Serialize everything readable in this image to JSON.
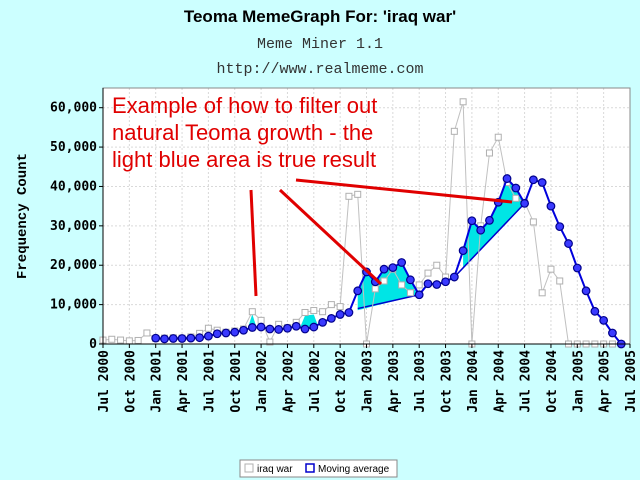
{
  "chart_data": {
    "type": "line",
    "title": "Teoma MemeGraph For: 'iraq war'",
    "subtitle": "Meme Miner 1.1",
    "url": "http://www.realmeme.com",
    "ylabel": "Frequency Count",
    "xlabel": "",
    "ylim": [
      0,
      65000
    ],
    "yticks": [
      0,
      10000,
      20000,
      30000,
      40000,
      50000,
      60000
    ],
    "ytick_labels": [
      "0",
      "10,000",
      "20,000",
      "30,000",
      "40,000",
      "50,000",
      "60,000"
    ],
    "xticks": [
      {
        "t": 0,
        "label": "Jul 2000"
      },
      {
        "t": 3,
        "label": "Oct 2000"
      },
      {
        "t": 6,
        "label": "Jan 2001"
      },
      {
        "t": 9,
        "label": "Apr 2001"
      },
      {
        "t": 12,
        "label": "Jul 2001"
      },
      {
        "t": 15,
        "label": "Oct 2001"
      },
      {
        "t": 18,
        "label": "Jan 2002"
      },
      {
        "t": 21,
        "label": "Apr 2002"
      },
      {
        "t": 24,
        "label": "Jul 2002"
      },
      {
        "t": 27,
        "label": "Oct 2002"
      },
      {
        "t": 30,
        "label": "Jan 2003"
      },
      {
        "t": 33,
        "label": "Apr 2003"
      },
      {
        "t": 36,
        "label": "Jul 2003"
      },
      {
        "t": 39,
        "label": "Oct 2003"
      },
      {
        "t": 42,
        "label": "Jan 2004"
      },
      {
        "t": 45,
        "label": "Apr 2004"
      },
      {
        "t": 48,
        "label": "Jul 2004"
      },
      {
        "t": 51,
        "label": "Oct 2004"
      },
      {
        "t": 54,
        "label": "Jan 2005"
      },
      {
        "t": 57,
        "label": "Apr 2005"
      },
      {
        "t": 60,
        "label": "Jul 2005"
      }
    ],
    "series": [
      {
        "name": "iraq war",
        "color": "#c0c0c0",
        "points": [
          [
            0,
            1000
          ],
          [
            1,
            1200
          ],
          [
            2,
            1000
          ],
          [
            3,
            800
          ],
          [
            4,
            900
          ],
          [
            5,
            2800
          ],
          [
            6,
            1400
          ],
          [
            7,
            1500
          ],
          [
            8,
            1600
          ],
          [
            9,
            1500
          ],
          [
            10,
            1800
          ],
          [
            11,
            2700
          ],
          [
            12,
            4000
          ],
          [
            13,
            3500
          ],
          [
            14,
            3000
          ],
          [
            15,
            3300
          ],
          [
            16,
            3800
          ],
          [
            17,
            8200
          ],
          [
            18,
            6000
          ],
          [
            19,
            500
          ],
          [
            20,
            5000
          ],
          [
            21,
            4200
          ],
          [
            22,
            5500
          ],
          [
            23,
            8000
          ],
          [
            24,
            8500
          ],
          [
            25,
            8200
          ],
          [
            26,
            10000
          ],
          [
            27,
            9500
          ],
          [
            28,
            37500
          ],
          [
            29,
            38000
          ],
          [
            30,
            0
          ],
          [
            31,
            14000
          ],
          [
            32,
            16000
          ],
          [
            33,
            19000
          ],
          [
            34,
            15000
          ],
          [
            35,
            13000
          ],
          [
            36,
            15000
          ],
          [
            37,
            18000
          ],
          [
            38,
            20000
          ],
          [
            39,
            17000
          ],
          [
            40,
            54000
          ],
          [
            41,
            61500
          ],
          [
            42,
            0
          ],
          [
            43,
            30000
          ],
          [
            44,
            48500
          ],
          [
            45,
            52500
          ],
          [
            46,
            41000
          ],
          [
            47,
            37000
          ],
          [
            48,
            36000
          ],
          [
            49,
            31000
          ],
          [
            50,
            13000
          ],
          [
            51,
            19000
          ],
          [
            52,
            16000
          ],
          [
            53,
            0
          ],
          [
            54,
            0
          ],
          [
            55,
            0
          ],
          [
            56,
            0
          ],
          [
            57,
            0
          ],
          [
            58,
            0
          ],
          [
            59,
            0
          ]
        ]
      },
      {
        "name": "Moving average",
        "color": "#0000dd",
        "points": [
          [
            6,
            1500
          ],
          [
            7,
            1300
          ],
          [
            8,
            1400
          ],
          [
            9,
            1400
          ],
          [
            10,
            1500
          ],
          [
            11,
            1600
          ],
          [
            12,
            2000
          ],
          [
            13,
            2600
          ],
          [
            14,
            2800
          ],
          [
            15,
            3000
          ],
          [
            16,
            3500
          ],
          [
            17,
            4200
          ],
          [
            18,
            4300
          ],
          [
            19,
            3800
          ],
          [
            20,
            3700
          ],
          [
            21,
            4000
          ],
          [
            22,
            4500
          ],
          [
            23,
            3800
          ],
          [
            24,
            4300
          ],
          [
            25,
            5500
          ],
          [
            26,
            6500
          ],
          [
            27,
            7500
          ],
          [
            28,
            8000
          ],
          [
            29,
            13500
          ],
          [
            30,
            18300
          ],
          [
            31,
            15800
          ],
          [
            32,
            19000
          ],
          [
            33,
            19400
          ],
          [
            34,
            20700
          ],
          [
            35,
            16300
          ],
          [
            36,
            12500
          ],
          [
            37,
            15300
          ],
          [
            38,
            15100
          ],
          [
            39,
            15800
          ],
          [
            40,
            17000
          ],
          [
            41,
            23700
          ],
          [
            42,
            31300
          ],
          [
            43,
            28900
          ],
          [
            44,
            31400
          ],
          [
            45,
            36000
          ],
          [
            46,
            42000
          ],
          [
            47,
            39600
          ],
          [
            48,
            35700
          ],
          [
            49,
            41700
          ],
          [
            50,
            41000
          ],
          [
            51,
            35000
          ],
          [
            52,
            29800
          ],
          [
            53,
            25500
          ],
          [
            54,
            19300
          ],
          [
            55,
            13500
          ],
          [
            56,
            8300
          ],
          [
            57,
            6000
          ],
          [
            58,
            2800
          ],
          [
            59,
            0
          ]
        ]
      }
    ],
    "legend": [
      "iraq war",
      "Moving average"
    ],
    "legend_placement": "bottom-center",
    "annotation": {
      "lines": [
        "Example of how to filter out",
        "natural Teoma growth - the",
        "light blue area is true result"
      ],
      "color": "#e00000"
    },
    "grid": true,
    "highlight_color": "#00e5e5"
  }
}
